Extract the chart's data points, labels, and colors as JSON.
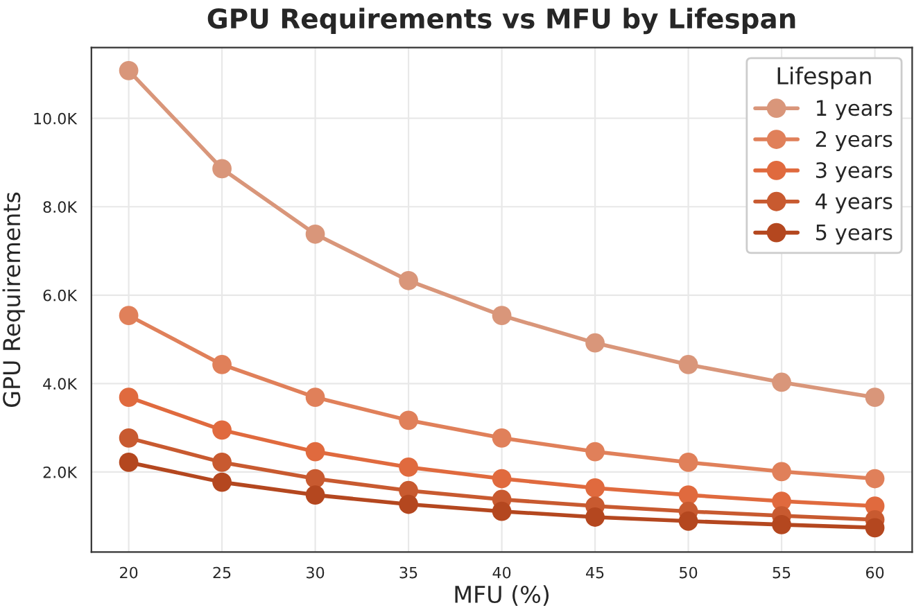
{
  "chart_data": {
    "type": "line",
    "title": "GPU Requirements vs MFU by Lifespan",
    "xlabel": "MFU (%)",
    "ylabel": "GPU Requirements",
    "legend_title": "Lifespan",
    "x": [
      20,
      25,
      30,
      35,
      40,
      45,
      50,
      55,
      60
    ],
    "series": [
      {
        "name": "1 years",
        "color": "#d9967a",
        "values": [
          11080,
          8860,
          7380,
          6330,
          5540,
          4920,
          4430,
          4030,
          3690
        ]
      },
      {
        "name": "2 years",
        "color": "#e0805a",
        "values": [
          5540,
          4430,
          3690,
          3170,
          2770,
          2460,
          2220,
          2010,
          1850
        ]
      },
      {
        "name": "3 years",
        "color": "#e06a3e",
        "values": [
          3690,
          2950,
          2460,
          2110,
          1850,
          1640,
          1480,
          1340,
          1230
        ]
      },
      {
        "name": "4 years",
        "color": "#c85a30",
        "values": [
          2770,
          2220,
          1850,
          1580,
          1380,
          1230,
          1110,
          1010,
          920
        ]
      },
      {
        "name": "5 years",
        "color": "#b4471f",
        "values": [
          2220,
          1770,
          1480,
          1270,
          1110,
          980,
          890,
          810,
          740
        ]
      }
    ],
    "xlim": [
      18,
      62
    ],
    "ylim": [
      190,
      11600
    ],
    "xticks": [
      20,
      25,
      30,
      35,
      40,
      45,
      50,
      55,
      60
    ],
    "yticks": [
      {
        "value": 2000,
        "label": "2.0K"
      },
      {
        "value": 4000,
        "label": "4.0K"
      },
      {
        "value": 6000,
        "label": "6.0K"
      },
      {
        "value": 8000,
        "label": "8.0K"
      },
      {
        "value": 10000,
        "label": "10.0K"
      }
    ],
    "grid": true,
    "legend": "top right",
    "marker": "circle",
    "line_style": "solid"
  }
}
